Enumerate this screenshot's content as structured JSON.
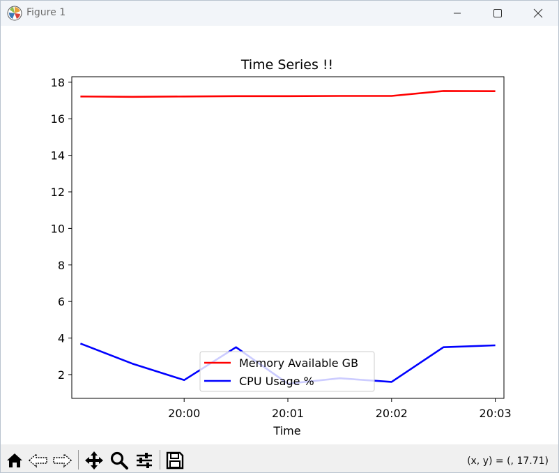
{
  "window": {
    "title": "Figure 1"
  },
  "toolbar": {
    "buttons": [
      "home-icon",
      "back-icon",
      "forward-icon",
      "pan-icon",
      "zoom-icon",
      "configure-subplots-icon",
      "save-icon"
    ],
    "coords_readout": "(x, y) = (, 17.71)"
  },
  "colors": {
    "memory_line": "#ff0000",
    "cpu_line": "#0000ff",
    "titlebar_bg": "#f2f5f9",
    "toolbar_bg": "#f0f0f0"
  },
  "chart_data": {
    "type": "line",
    "title": "Time Series !!",
    "xlabel": "Time",
    "ylabel": "",
    "x": [
      "19:59:00",
      "19:59:30",
      "20:00:00",
      "20:00:30",
      "20:01:00",
      "20:01:30",
      "20:02:00",
      "20:02:30",
      "20:03:00"
    ],
    "x_ticks": [
      "20:00",
      "20:01",
      "20:02",
      "20:03"
    ],
    "xlim": [
      "19:58:55",
      "20:03:05"
    ],
    "y_ticks": [
      2,
      4,
      6,
      8,
      10,
      12,
      14,
      16,
      18
    ],
    "ylim": [
      0.7,
      18.3
    ],
    "grid": false,
    "legend_position": "lower center",
    "series": [
      {
        "name": "Memory Available GB",
        "color": "#ff0000",
        "values": [
          17.22,
          17.2,
          17.22,
          17.24,
          17.24,
          17.25,
          17.25,
          17.52,
          17.51
        ]
      },
      {
        "name": "CPU Usage %",
        "color": "#0000ff",
        "values": [
          3.7,
          2.6,
          1.7,
          3.5,
          1.5,
          1.8,
          1.6,
          3.5,
          3.6
        ]
      }
    ]
  }
}
